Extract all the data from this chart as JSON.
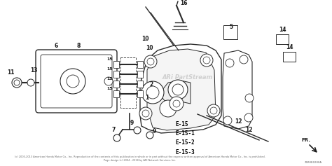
{
  "bg_color": "#ffffff",
  "fig_width": 4.74,
  "fig_height": 2.37,
  "dpi": 100,
  "copyright_text": "(c) 2003-2013 American Honda Motor Co., Inc. Reproduction of the contents of this publication in whole or in part without the express written approval of American Honda Motor Co., Inc. is prohibited.\nPage design (c) 2004 - 2018 by ARI Network Services, Inc.",
  "part_code": "Z5R0E0200A",
  "watermark": "ARi PartStream",
  "diagram_label": "E-15\nE-15-1\nE-15-2\nE-15-3",
  "line_color": "#2a2a2a",
  "text_color": "#1a1a1a",
  "watermark_color": "#c0c0c0",
  "label_color": "#000000",
  "footer_color": "#666666"
}
